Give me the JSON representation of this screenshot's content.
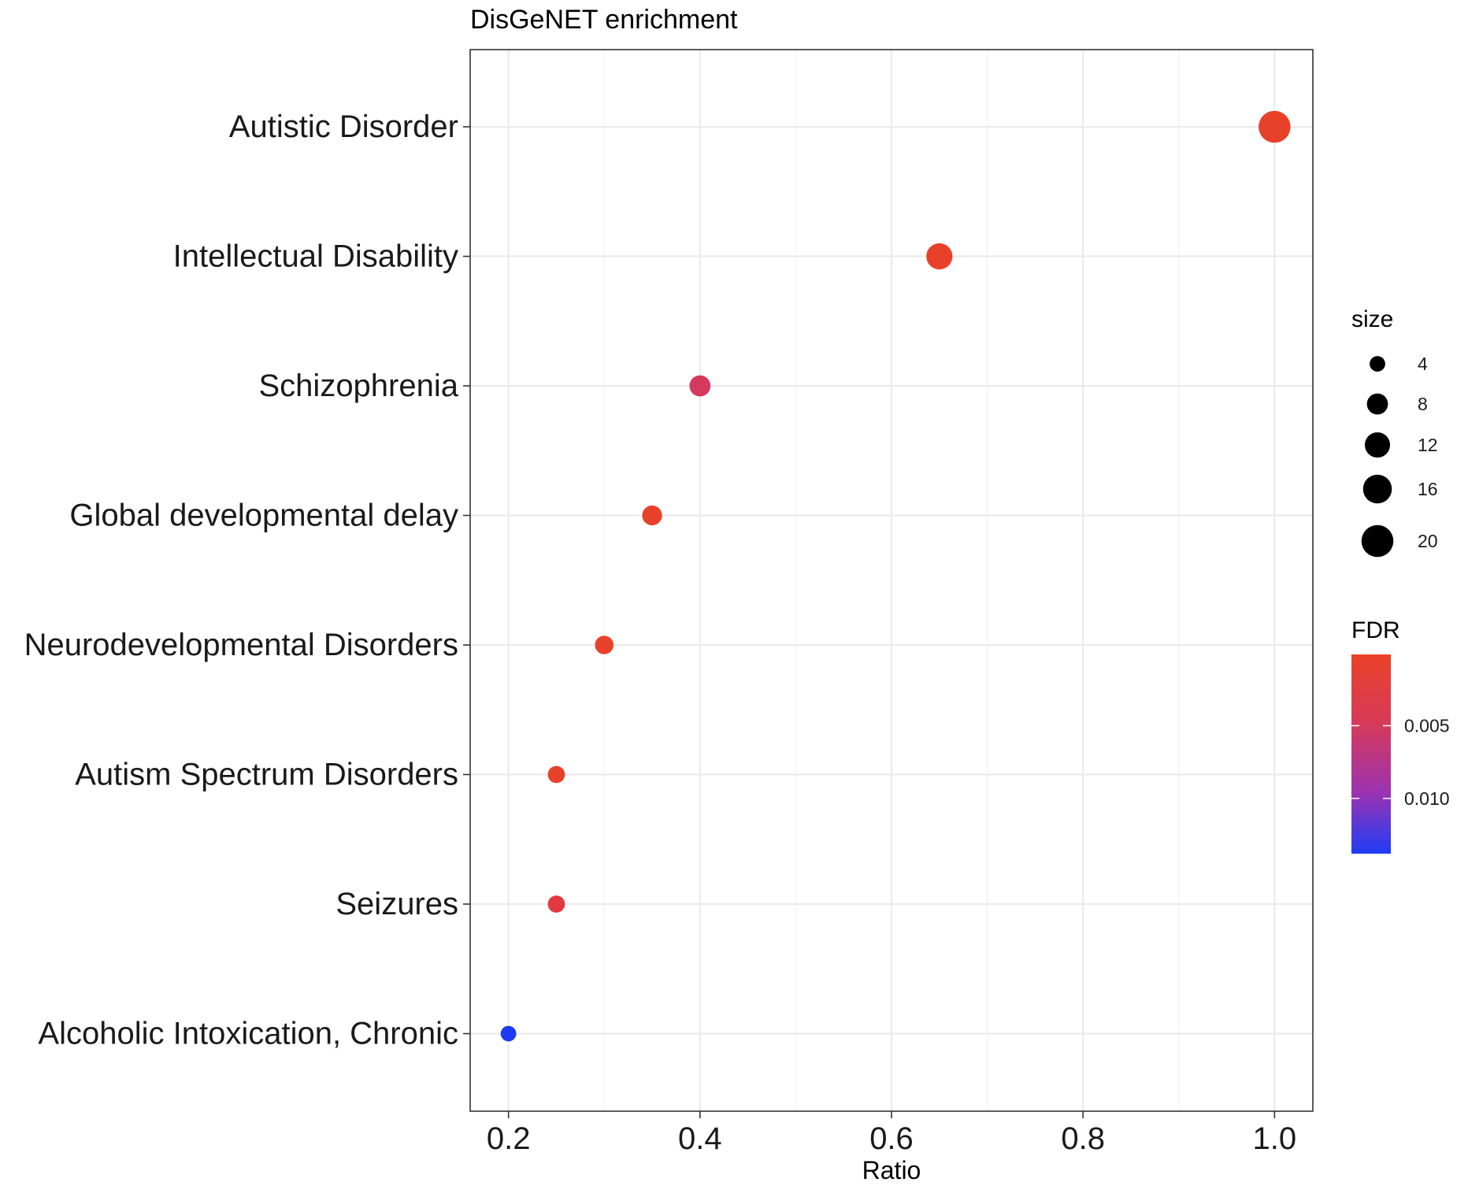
{
  "chart_data": {
    "type": "scatter",
    "title": "DisGeNET enrichment",
    "xlabel": "Ratio",
    "ylabel": "",
    "xlim": [
      0.16,
      1.04
    ],
    "x_ticks": [
      0.2,
      0.4,
      0.6,
      0.8,
      1.0
    ],
    "x_tick_labels": [
      "0.2",
      "0.4",
      "0.6",
      "0.8",
      "1.0"
    ],
    "categories": [
      "Autistic Disorder",
      "Intellectual Disability",
      "Schizophrenia",
      "Global developmental delay",
      "Neurodevelopmental Disorders",
      "Autism Spectrum Disorders",
      "Seizures",
      "Alcoholic Intoxication, Chronic"
    ],
    "points": [
      {
        "term": "Autistic Disorder",
        "ratio": 1.0,
        "size": 20,
        "fdr": 0.0001,
        "color": "#e8412a"
      },
      {
        "term": "Intellectual Disability",
        "ratio": 0.65,
        "size": 13,
        "fdr": 0.0003,
        "color": "#e8412a"
      },
      {
        "term": "Schizophrenia",
        "ratio": 0.4,
        "size": 8,
        "fdr": 0.0045,
        "color": "#d6395e"
      },
      {
        "term": "Global developmental delay",
        "ratio": 0.35,
        "size": 7,
        "fdr": 0.0008,
        "color": "#e8412a"
      },
      {
        "term": "Neurodevelopmental Disorders",
        "ratio": 0.3,
        "size": 6,
        "fdr": 0.0008,
        "color": "#e8412a"
      },
      {
        "term": "Autism Spectrum Disorders",
        "ratio": 0.25,
        "size": 5,
        "fdr": 0.0008,
        "color": "#e8412a"
      },
      {
        "term": "Seizures",
        "ratio": 0.25,
        "size": 5,
        "fdr": 0.0018,
        "color": "#e03a40"
      },
      {
        "term": "Alcoholic Intoxication, Chronic",
        "ratio": 0.2,
        "size": 4,
        "fdr": 0.014,
        "color": "#1f3af2"
      }
    ],
    "legend_size": {
      "title": "size",
      "breaks": [
        4,
        8,
        12,
        16,
        20
      ],
      "labels": [
        "4",
        "8",
        "12",
        "16",
        "20"
      ],
      "placement": "right"
    },
    "legend_color": {
      "title": "FDR",
      "breaks": [
        0.005,
        0.01
      ],
      "labels": [
        "0.005",
        "0.010"
      ],
      "range": [
        0.0001,
        0.0138
      ],
      "low_color": "#e8412a",
      "high_color": "#1f3af2",
      "placement": "right"
    },
    "grid": true
  }
}
